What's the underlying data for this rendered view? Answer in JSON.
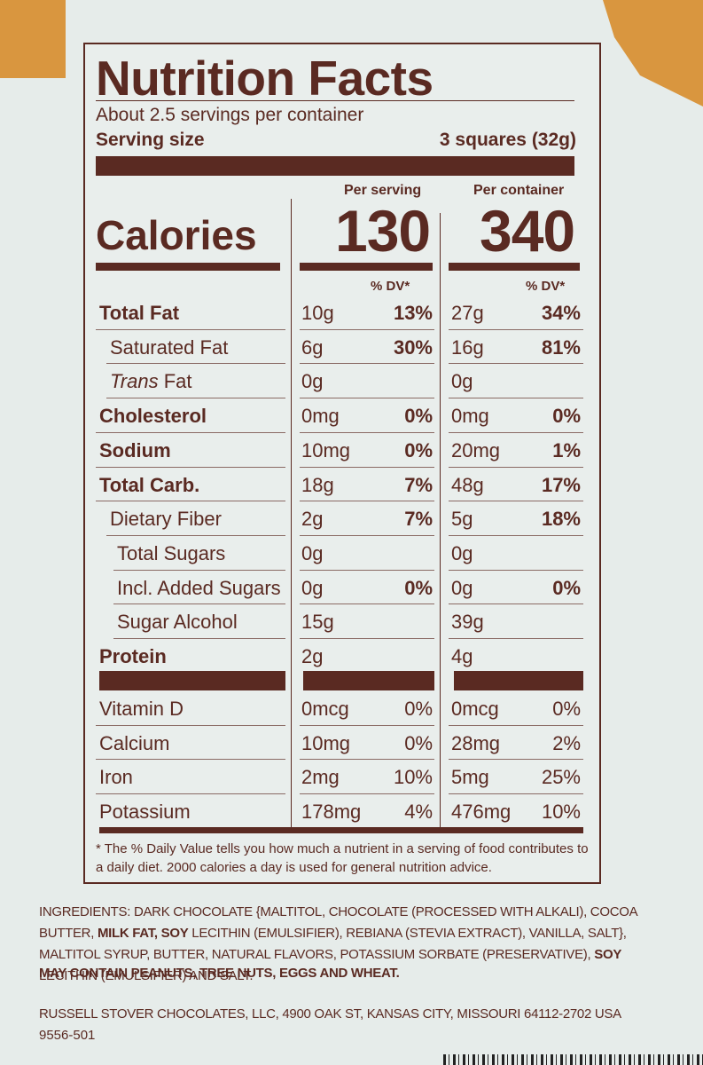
{
  "title": "Nutrition Facts",
  "servings_per_container": "About 2.5 servings per container",
  "serving_size_label": "Serving size",
  "serving_size_value": "3 squares (32g)",
  "per_serving_label": "Per serving",
  "per_container_label": "Per container",
  "calories_label": "Calories",
  "calories_per_serving": "130",
  "calories_per_container": "340",
  "dv_header": "% DV*",
  "nutrients": [
    {
      "label": "Total Fat",
      "serv": "10g",
      "serv_dv": "13%",
      "cont": "27g",
      "cont_dv": "34%"
    },
    {
      "label": "Saturated Fat",
      "serv": "6g",
      "serv_dv": "30%",
      "cont": "16g",
      "cont_dv": "81%"
    },
    {
      "label_italic": "Trans",
      "label": " Fat",
      "serv": "0g",
      "serv_dv": "",
      "cont": "0g",
      "cont_dv": ""
    },
    {
      "label": "Cholesterol",
      "serv": "0mg",
      "serv_dv": "0%",
      "cont": "0mg",
      "cont_dv": "0%"
    },
    {
      "label": "Sodium",
      "serv": "10mg",
      "serv_dv": "0%",
      "cont": "20mg",
      "cont_dv": "1%"
    },
    {
      "label": "Total Carb.",
      "serv": "18g",
      "serv_dv": "7%",
      "cont": "48g",
      "cont_dv": "17%"
    },
    {
      "label": "Dietary Fiber",
      "serv": "2g",
      "serv_dv": "7%",
      "cont": "5g",
      "cont_dv": "18%"
    },
    {
      "label": "Total Sugars",
      "serv": "0g",
      "serv_dv": "",
      "cont": "0g",
      "cont_dv": ""
    },
    {
      "label": "Incl. Added Sugars",
      "serv": "0g",
      "serv_dv": "0%",
      "cont": "0g",
      "cont_dv": "0%"
    },
    {
      "label": "Sugar Alcohol",
      "serv": "15g",
      "serv_dv": "",
      "cont": "39g",
      "cont_dv": ""
    },
    {
      "label": "Protein",
      "serv": "2g",
      "serv_dv": "",
      "cont": "4g",
      "cont_dv": ""
    }
  ],
  "vitamins": [
    {
      "label": "Vitamin D",
      "serv": "0mcg",
      "serv_dv": "0%",
      "cont": "0mcg",
      "cont_dv": "0%"
    },
    {
      "label": "Calcium",
      "serv": "10mg",
      "serv_dv": "0%",
      "cont": "28mg",
      "cont_dv": "2%"
    },
    {
      "label": "Iron",
      "serv": "2mg",
      "serv_dv": "10%",
      "cont": "5mg",
      "cont_dv": "25%"
    },
    {
      "label": "Potassium",
      "serv": "178mg",
      "serv_dv": "4%",
      "cont": "476mg",
      "cont_dv": "10%"
    }
  ],
  "footnote": "* The % Daily Value tells you how much a nutrient in a serving of food contributes to a daily diet. 2000 calories a day is used for general nutrition advice.",
  "ingredients": {
    "p1": "INGREDIENTS: DARK CHOCOLATE {MALTITOL, CHOCOLATE (PROCESSED WITH ALKALI), COCOA BUTTER, ",
    "b1": "MILK FAT, SOY",
    "p2": " LECITHIN (EMULSIFIER), REBIANA (STEVIA EXTRACT), VANILLA, SALT}, MALTITOL SYRUP, BUTTER, NATURAL FLAVORS, POTASSIUM SORBATE (PRESERVATIVE), ",
    "b2": "SOY",
    "p3": " LECITHIN (EMULSIFIER) AND SALT."
  },
  "allergen": "MAY CONTAIN PEANUTS, TREE NUTS, EGGS AND WHEAT.",
  "address": "RUSSELL STOVER CHOCOLATES, LLC, 4900 OAK ST, KANSAS CITY, MISSOURI 64112-2702 USA",
  "code": "9556-501"
}
